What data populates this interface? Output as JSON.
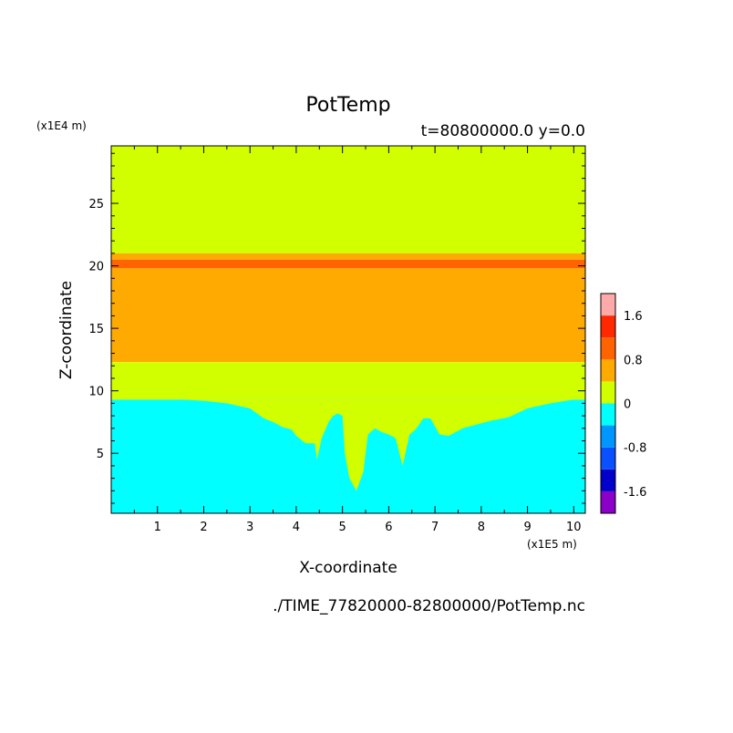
{
  "chart_data": {
    "type": "heatmap",
    "title": "PotTemp",
    "subtitle": "t=80800000.0 y=0.0",
    "xlabel": "X-coordinate",
    "ylabel": "Z-coordinate",
    "x_units": "(x1E5 m)",
    "y_units": "(x1E4 m)",
    "footer": "./TIME_77820000-82800000/PotTemp.nc",
    "xlim": [
      0,
      10.25
    ],
    "ylim": [
      0.2,
      29.6
    ],
    "x_ticks": [
      1,
      2,
      3,
      4,
      5,
      6,
      7,
      8,
      9,
      10
    ],
    "y_ticks": [
      5,
      10,
      15,
      20,
      25
    ],
    "grid": false,
    "legend": "colorbar-right",
    "colorbar": {
      "levels": [
        -2.0,
        -1.6,
        -1.2,
        -0.8,
        -0.4,
        0,
        0.4,
        0.8,
        1.2,
        1.6,
        2.0
      ],
      "colors": [
        "#8a00c8",
        "#0000c8",
        "#0a50ff",
        "#0096ff",
        "#00ffff",
        "#d2ff00",
        "#ffaa00",
        "#ff6400",
        "#ff2800",
        "#ffaaaa"
      ],
      "tick_labels": [
        "1.6",
        "0.8",
        "0",
        "-0.8",
        "-1.6"
      ],
      "tick_values": [
        1.6,
        0.8,
        0,
        -0.8,
        -1.6
      ]
    },
    "layers": [
      {
        "name": "upper-layer",
        "value_range": [
          0,
          0.4
        ],
        "color": "#d2ff00",
        "z_range": [
          21.0,
          29.6
        ]
      },
      {
        "name": "top-orange-band",
        "value_range": [
          0.4,
          0.8
        ],
        "color": "#ffaa00",
        "z_range": [
          20.5,
          21.0
        ]
      },
      {
        "name": "warm-band",
        "value_range": [
          0.8,
          1.2
        ],
        "color": "#ff6400",
        "z_range": [
          19.8,
          20.5
        ]
      },
      {
        "name": "mid-orange-layer",
        "value_range": [
          0.4,
          0.8
        ],
        "color": "#ffaa00",
        "z_range": [
          12.3,
          19.8
        ]
      },
      {
        "name": "mid-layer",
        "value_range": [
          0,
          0.4
        ],
        "color": "#d2ff00",
        "z_range": [
          9.3,
          12.3
        ]
      },
      {
        "name": "cold-layer",
        "value_range": [
          -0.4,
          0
        ],
        "color": "#00ffff",
        "z_range": [
          0.2,
          9.3
        ]
      }
    ],
    "cold_layer_top": {
      "x": [
        0,
        0.5,
        1.0,
        1.5,
        2.0,
        2.5,
        3.0,
        3.3,
        3.5,
        3.7,
        3.9,
        4.0,
        4.2,
        4.4,
        4.45,
        4.55,
        4.7,
        4.8,
        4.9,
        5.0,
        5.05,
        5.15,
        5.3,
        5.45,
        5.55,
        5.7,
        5.85,
        6.0,
        6.15,
        6.3,
        6.45,
        6.55,
        6.6,
        6.75,
        6.9,
        7.1,
        7.3,
        7.6,
        7.9,
        8.2,
        8.6,
        9.0,
        9.5,
        10.0,
        10.25
      ],
      "z": [
        9.5,
        9.5,
        9.4,
        9.3,
        9.2,
        9.0,
        8.6,
        7.8,
        7.5,
        7.1,
        6.9,
        6.4,
        5.8,
        5.8,
        4.5,
        6.2,
        7.5,
        8.0,
        8.2,
        8.0,
        5.0,
        3.0,
        2.0,
        3.5,
        6.5,
        7.0,
        6.7,
        6.5,
        6.2,
        4.0,
        6.5,
        6.8,
        7.0,
        7.8,
        7.8,
        6.5,
        6.4,
        7.0,
        7.3,
        7.6,
        7.9,
        8.6,
        9.0,
        9.3,
        9.4
      ]
    }
  }
}
